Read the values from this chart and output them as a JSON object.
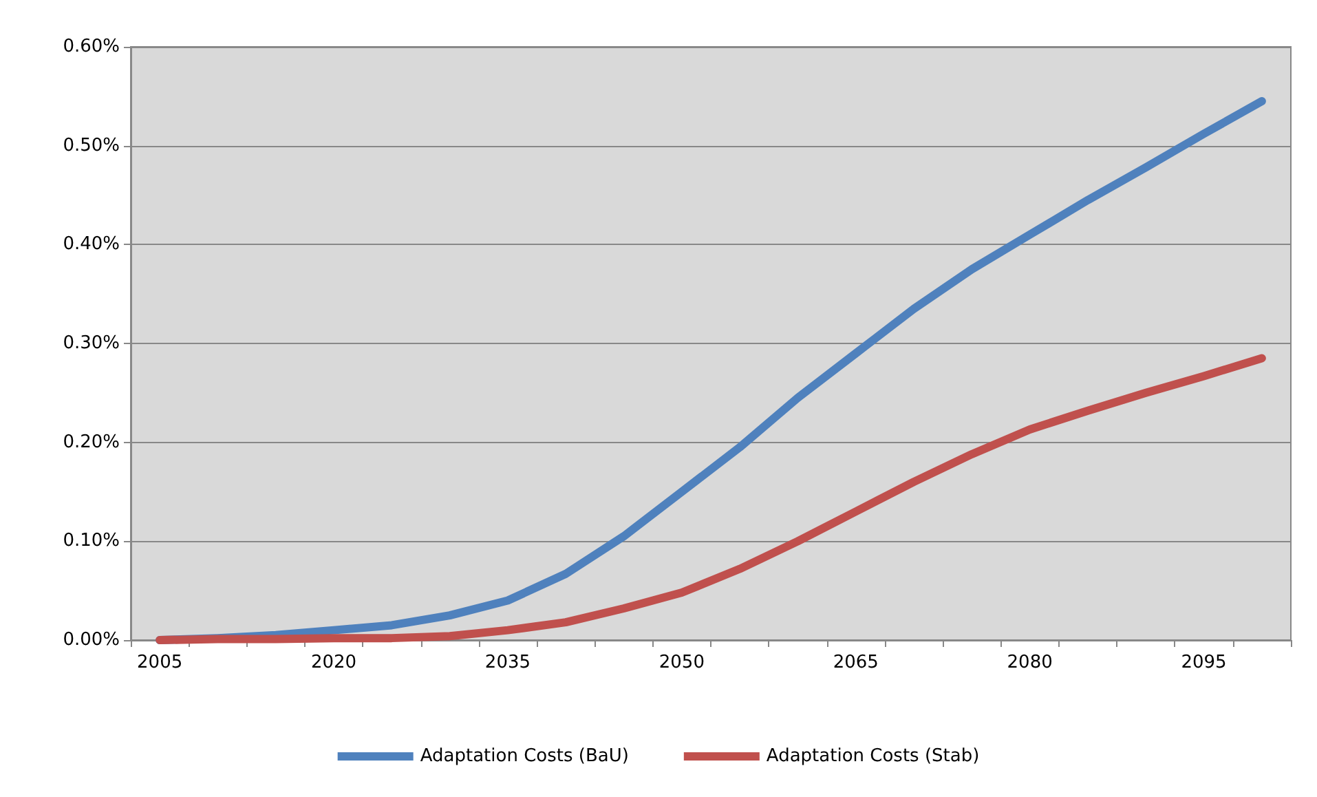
{
  "chart_data": {
    "type": "line",
    "categories": [
      "2005",
      null,
      null,
      "2020",
      null,
      null,
      "2035",
      null,
      null,
      "2050",
      null,
      null,
      "2065",
      null,
      null,
      "2080",
      null,
      null,
      "2095",
      null
    ],
    "series": [
      {
        "name": "Adaptation Costs (BaU)",
        "color": "#4f81bd",
        "values": [
          0,
          0.002,
          0.005,
          0.01,
          0.015,
          0.025,
          0.04,
          0.067,
          0.105,
          0.15,
          0.195,
          0.245,
          0.29,
          0.335,
          0.375,
          0.41,
          0.445,
          0.478,
          0.512,
          0.545
        ]
      },
      {
        "name": "Adaptation Costs (Stab)",
        "color": "#c0504d",
        "values": [
          0,
          0.001,
          0.001,
          0.002,
          0.002,
          0.004,
          0.01,
          0.018,
          0.032,
          0.048,
          0.072,
          0.1,
          0.13,
          0.16,
          0.188,
          0.213,
          0.232,
          0.25,
          0.267,
          0.285
        ]
      }
    ],
    "ylim": [
      0,
      0.6
    ],
    "yticks": [
      {
        "value": 0,
        "label": "0.00%"
      },
      {
        "value": 0.1,
        "label": "0.10%"
      },
      {
        "value": 0.2,
        "label": "0.20%"
      },
      {
        "value": 0.3,
        "label": "0.30%"
      },
      {
        "value": 0.4,
        "label": "0.40%"
      },
      {
        "value": 0.5,
        "label": "0.50%"
      },
      {
        "value": 0.6,
        "label": "0.60%"
      }
    ],
    "grid": "y",
    "legend": "bottom",
    "marker": "none",
    "line_style": "solid"
  }
}
